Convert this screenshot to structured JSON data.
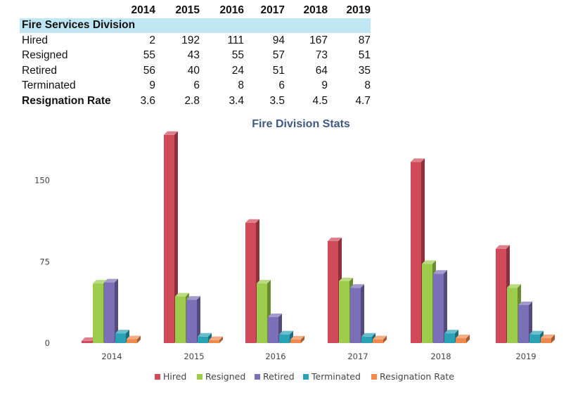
{
  "table": {
    "years": [
      "2014",
      "2015",
      "2016",
      "2017",
      "2018",
      "2019"
    ],
    "section_title": "Fire Services Division",
    "rows": [
      {
        "label": "Hired",
        "values": [
          "2",
          "192",
          "111",
          "94",
          "167",
          "87"
        ],
        "bold": false
      },
      {
        "label": "Resigned",
        "values": [
          "55",
          "43",
          "55",
          "57",
          "73",
          "51"
        ],
        "bold": false
      },
      {
        "label": "Retired",
        "values": [
          "56",
          "40",
          "24",
          "51",
          "64",
          "35"
        ],
        "bold": false
      },
      {
        "label": "Terminated",
        "values": [
          "9",
          "6",
          "8",
          "6",
          "9",
          "8"
        ],
        "bold": false
      },
      {
        "label": "Resignation Rate",
        "values": [
          "3.6",
          "2.8",
          "3.4",
          "3.5",
          "4.5",
          "4.7"
        ],
        "bold": true
      }
    ]
  },
  "chart_data": {
    "type": "bar",
    "title": "Fire Division Stats",
    "categories": [
      "2014",
      "2015",
      "2016",
      "2017",
      "2018",
      "2019"
    ],
    "series": [
      {
        "name": "Hired",
        "values": [
          2,
          192,
          111,
          94,
          167,
          87
        ],
        "color": "#d04a5a"
      },
      {
        "name": "Resigned",
        "values": [
          55,
          43,
          55,
          57,
          73,
          51
        ],
        "color": "#9ccc4a"
      },
      {
        "name": "Retired",
        "values": [
          56,
          40,
          24,
          51,
          64,
          35
        ],
        "color": "#7b6fb8"
      },
      {
        "name": "Terminated",
        "values": [
          9,
          6,
          8,
          6,
          9,
          8
        ],
        "color": "#28a2b4"
      },
      {
        "name": "Resignation Rate",
        "values": [
          3.6,
          2.8,
          3.4,
          3.5,
          4.5,
          4.7
        ],
        "color": "#ef8a4c"
      }
    ],
    "yticks": [
      0,
      75,
      150
    ],
    "ylim": [
      0,
      200
    ],
    "grid": false,
    "legend_position": "bottom",
    "style": "3d-column"
  }
}
